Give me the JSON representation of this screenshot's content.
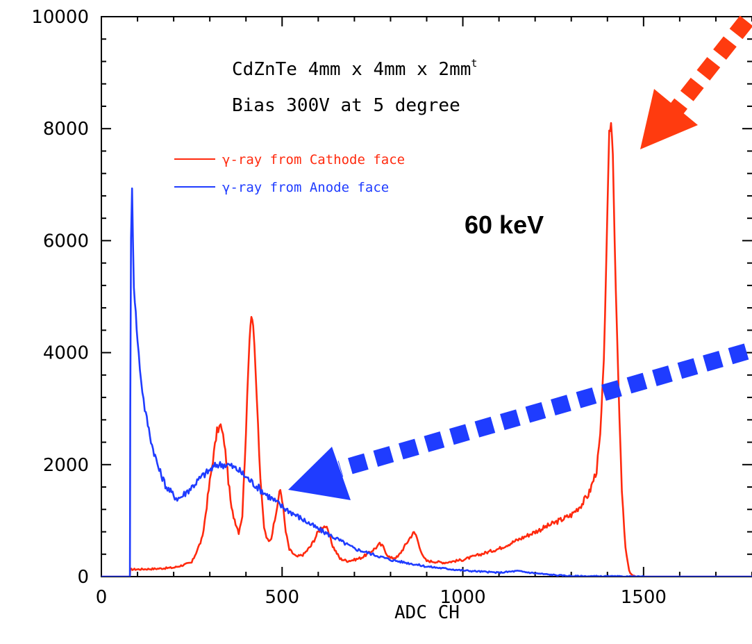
{
  "chart_data": {
    "type": "line",
    "title": "",
    "xlabel": "ADC CH",
    "ylabel": "",
    "xlim": [
      0,
      1800
    ],
    "ylim": [
      0,
      10000
    ],
    "x_ticks": [
      0,
      500,
      1000,
      1500
    ],
    "y_ticks": [
      0,
      2000,
      4000,
      6000,
      8000,
      10000
    ],
    "grid": false,
    "legend_position": "upper-left",
    "annotations": [
      {
        "text": "CdZnTe 4mm x 4mm x 2mm",
        "superscript": "t"
      },
      {
        "text": "Bias 300V at 5 degree"
      },
      {
        "text": "60 keV"
      }
    ],
    "colors": {
      "cathode": "#ff2a0e",
      "anode": "#1f3cff",
      "red_arrow": "#ff3b0f",
      "blue_arrow": "#1f3cff"
    },
    "series": [
      {
        "name": "γ-ray from Cathode face",
        "color": "#ff2a0e",
        "x": [
          0,
          79,
          80,
          100,
          150,
          200,
          250,
          280,
          300,
          320,
          330,
          340,
          360,
          380,
          390,
          400,
          410,
          415,
          420,
          430,
          440,
          450,
          460,
          470,
          480,
          490,
          495,
          500,
          510,
          520,
          540,
          560,
          580,
          600,
          610,
          620,
          630,
          640,
          660,
          680,
          700,
          720,
          740,
          760,
          770,
          780,
          790,
          800,
          820,
          840,
          860,
          865,
          870,
          880,
          890,
          900,
          950,
          1000,
          1050,
          1100,
          1150,
          1200,
          1250,
          1300,
          1330,
          1350,
          1370,
          1380,
          1390,
          1400,
          1405,
          1410,
          1415,
          1420,
          1430,
          1440,
          1450,
          1460,
          1470,
          1480,
          1500,
          1600,
          1700,
          1800
        ],
        "values": [
          0,
          0,
          130,
          130,
          140,
          160,
          250,
          700,
          1700,
          2600,
          2700,
          2400,
          1200,
          800,
          1100,
          2600,
          4300,
          4700,
          4500,
          3200,
          1700,
          900,
          650,
          700,
          1000,
          1400,
          1550,
          1400,
          800,
          480,
          350,
          400,
          550,
          800,
          900,
          900,
          750,
          550,
          320,
          280,
          300,
          340,
          420,
          520,
          580,
          530,
          400,
          330,
          350,
          550,
          760,
          780,
          750,
          550,
          350,
          280,
          250,
          300,
          400,
          500,
          650,
          800,
          950,
          1100,
          1300,
          1500,
          1900,
          2500,
          3800,
          6500,
          7900,
          8100,
          7600,
          6000,
          3500,
          1500,
          500,
          100,
          20,
          0,
          0,
          0,
          0,
          0
        ]
      },
      {
        "name": "γ-ray from Anode face",
        "color": "#1f3cff",
        "x": [
          0,
          79,
          80,
          82,
          85,
          90,
          95,
          100,
          110,
          120,
          140,
          160,
          180,
          200,
          210,
          220,
          250,
          280,
          300,
          320,
          340,
          350,
          360,
          380,
          400,
          450,
          500,
          550,
          600,
          650,
          700,
          800,
          900,
          1000,
          1100,
          1150,
          1200,
          1250,
          1300,
          1400,
          1500,
          1800
        ],
        "values": [
          0,
          0,
          3000,
          6000,
          6900,
          5200,
          4700,
          4200,
          3500,
          3000,
          2350,
          1900,
          1600,
          1450,
          1400,
          1420,
          1600,
          1800,
          1900,
          2000,
          2000,
          2000,
          1970,
          1900,
          1780,
          1500,
          1250,
          1050,
          850,
          680,
          500,
          300,
          180,
          110,
          70,
          100,
          60,
          30,
          10,
          5,
          0,
          0
        ]
      }
    ]
  }
}
